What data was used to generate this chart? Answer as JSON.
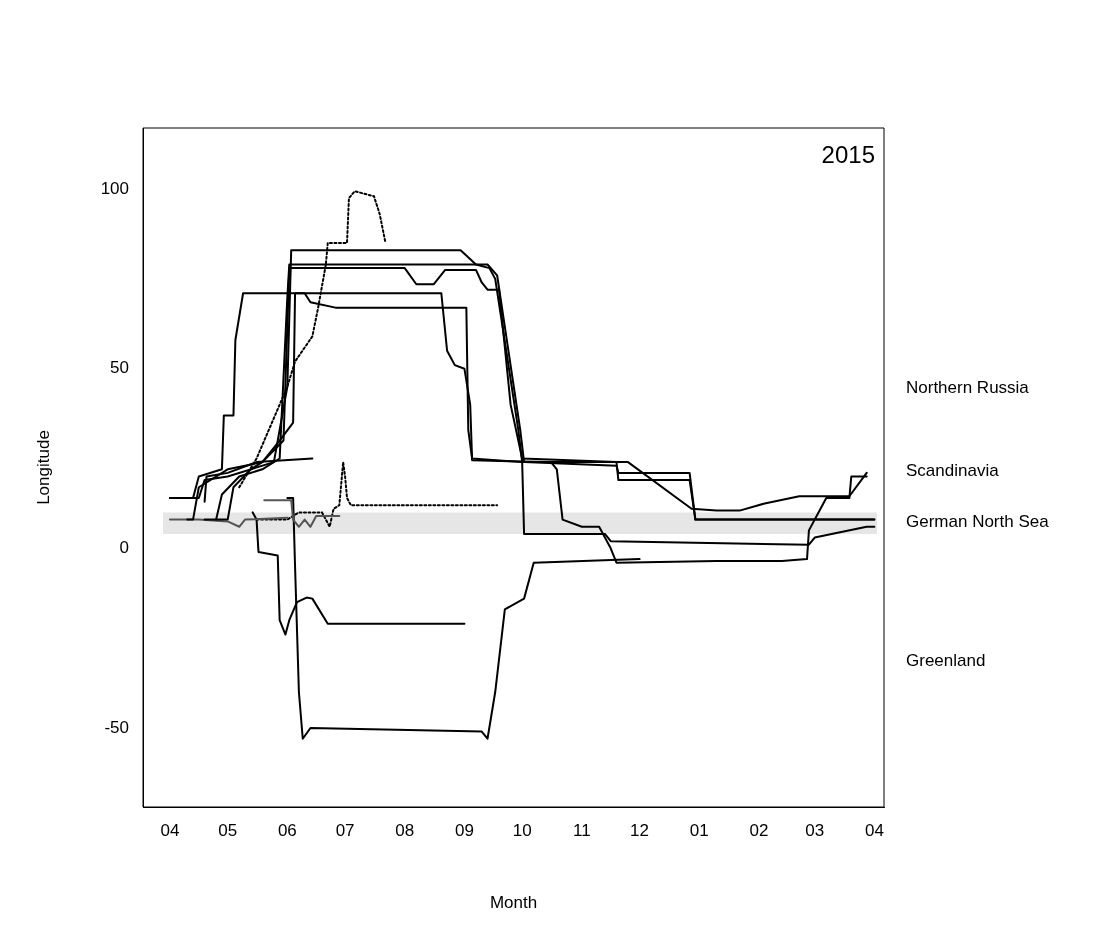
{
  "chart_data": {
    "type": "line",
    "xlabel": "Month",
    "ylabel": "Longitude",
    "xlim": [
      "2015-03-18",
      "2016-04-06"
    ],
    "ylim": [
      -72,
      117
    ],
    "xticks": [
      {
        "value": "2015-04",
        "label": "04"
      },
      {
        "value": "2015-05",
        "label": "05"
      },
      {
        "value": "2015-06",
        "label": "06"
      },
      {
        "value": "2015-07",
        "label": "07"
      },
      {
        "value": "2015-08",
        "label": "08"
      },
      {
        "value": "2015-09",
        "label": "09"
      },
      {
        "value": "2015-10",
        "label": "10"
      },
      {
        "value": "2015-11",
        "label": "11"
      },
      {
        "value": "2015-12",
        "label": "12"
      },
      {
        "value": "2016-01",
        "label": "01"
      },
      {
        "value": "2016-02",
        "label": "02"
      },
      {
        "value": "2016-03",
        "label": "03"
      },
      {
        "value": "2016-04",
        "label": "04"
      }
    ],
    "yticks": [
      -50,
      0,
      50,
      100
    ],
    "grid": false,
    "legend": false,
    "marker": "none",
    "bands": [
      {
        "axis": "y",
        "from": 4,
        "to": 10,
        "color": "#e6e6e6"
      }
    ],
    "annotations": [
      "2015",
      "Northern Russia",
      "Scandinavia",
      "German North Sea",
      "Greenland"
    ],
    "series": [
      {
        "color": "#000000",
        "x": [
          "2015-04-01",
          "2015-04-16",
          "2015-04-19",
          "2015-05-01",
          "2015-05-25",
          "2015-06-01",
          "2015-06-03",
          "2015-08-30",
          "2015-09-07",
          "2015-09-14",
          "2015-09-17",
          "2015-09-29",
          "2015-10-01",
          "2015-11-25",
          "2015-12-28",
          "2016-01-10",
          "2016-01-22",
          "2016-02-04",
          "2016-02-22",
          "2016-03-19",
          "2016-03-28"
        ],
        "values": [
          14,
          14,
          19,
          20,
          24,
          45,
          83,
          83,
          79,
          78,
          75,
          33,
          24,
          24,
          11,
          10.5,
          10.5,
          12.5,
          14.5,
          14.5,
          21
        ]
      },
      {
        "color": "#000000",
        "x": [
          "2015-04-19",
          "2015-04-25",
          "2015-04-28",
          "2015-05-07",
          "2015-05-19",
          "2015-05-28",
          "2015-06-01",
          "2015-06-02",
          "2015-09-13",
          "2015-09-18",
          "2015-09-30",
          "2015-10-02",
          "2015-11-19",
          "2015-11-20",
          "2015-12-27",
          "2015-12-30",
          "2016-04-01"
        ],
        "values": [
          8,
          8,
          15,
          20,
          22,
          25,
          70,
          79,
          79,
          76,
          33,
          24,
          23,
          21,
          21,
          8,
          8
        ]
      },
      {
        "color": "#000000",
        "x": [
          "2015-04-10",
          "2015-04-13",
          "2015-04-16",
          "2015-05-01",
          "2015-05-19",
          "2015-05-30",
          "2015-06-02",
          "2015-08-01",
          "2015-08-07",
          "2015-08-16",
          "2015-08-22",
          "2015-09-07",
          "2015-09-10",
          "2015-09-13",
          "2015-09-19",
          "2015-09-25",
          "2015-10-01",
          "2015-11-19",
          "2015-11-20",
          "2015-12-27",
          "2015-12-30",
          "2016-04-01"
        ],
        "values": [
          8,
          8,
          17,
          22,
          24,
          30,
          78,
          78,
          73.5,
          73.5,
          77.5,
          77.5,
          74,
          72,
          72,
          40,
          25,
          24,
          19,
          19,
          8,
          8
        ]
      },
      {
        "color": "#000000",
        "x": [
          "2015-04-01",
          "2015-04-13",
          "2015-04-16",
          "2015-04-28",
          "2015-04-29",
          "2015-05-04",
          "2015-05-05",
          "2015-05-09",
          "2015-08-20",
          "2015-08-23",
          "2015-08-27",
          "2015-09-01",
          "2015-09-04",
          "2015-09-05",
          "2015-10-16",
          "2015-10-19",
          "2015-10-22",
          "2015-11-01",
          "2015-11-10",
          "2015-11-16",
          "2015-11-19",
          "2016-01-10",
          "2016-02-13",
          "2016-02-26",
          "2016-02-27",
          "2016-03-07",
          "2016-03-19",
          "2016-03-20",
          "2016-03-28"
        ],
        "values": [
          14,
          14,
          20,
          22,
          37,
          37,
          58,
          71,
          71,
          55,
          51,
          50,
          40,
          24.5,
          24,
          22,
          8,
          6,
          6,
          0,
          -4,
          -3.5,
          -3.5,
          -3,
          5,
          14,
          14,
          20,
          20
        ]
      },
      {
        "color": "#000000",
        "x": [
          "2015-04-25",
          "2015-05-01",
          "2015-05-04",
          "2015-05-13",
          "2015-05-19",
          "2015-05-28",
          "2015-06-04",
          "2015-06-05",
          "2015-06-10",
          "2015-06-13",
          "2015-06-26",
          "2015-09-02",
          "2015-09-03",
          "2015-09-05",
          "2015-10-01",
          "2015-10-02",
          "2015-11-13",
          "2015-11-16",
          "2016-02-27",
          "2016-03-01",
          "2016-03-28",
          "2016-04-01"
        ],
        "values": [
          8,
          8,
          17,
          22,
          24,
          30,
          35,
          71,
          71,
          68.5,
          67,
          67,
          33,
          25,
          24,
          4,
          4,
          2,
          1,
          3,
          6,
          6
        ]
      },
      {
        "color": "#000000",
        "x": [
          "2015-04-19",
          "2015-04-20",
          "2015-05-01",
          "2015-05-16",
          "2015-06-14"
        ],
        "values": [
          13,
          20,
          21,
          24,
          25
        ]
      },
      {
        "color": "#555555",
        "x": [
          "2015-04-01",
          "2015-04-16",
          "2015-05-01",
          "2015-05-07",
          "2015-05-10",
          "2015-06-01"
        ],
        "values": [
          8,
          8,
          7.5,
          6,
          8,
          8.5
        ]
      },
      {
        "color": "#555555",
        "x": [
          "2015-05-20",
          "2015-06-03",
          "2015-06-04",
          "2015-06-07",
          "2015-06-10",
          "2015-06-13",
          "2015-06-16",
          "2015-06-28"
        ],
        "values": [
          13.4,
          13.4,
          8,
          6,
          8,
          6,
          9,
          9
        ]
      },
      {
        "color": "#000000",
        "x": [
          "2015-05-14",
          "2015-05-16",
          "2015-05-17",
          "2015-05-27",
          "2015-05-28",
          "2015-05-31",
          "2015-06-02",
          "2015-06-06",
          "2015-06-11",
          "2015-06-14",
          "2015-06-22",
          "2015-09-01"
        ],
        "values": [
          10,
          8,
          -1,
          -2,
          -20,
          -24,
          -20,
          -15,
          -13.7,
          -14,
          -21,
          -21
        ]
      },
      {
        "color": "#000000",
        "x": [
          "2015-06-01",
          "2015-06-04",
          "2015-06-05",
          "2015-06-07",
          "2015-06-09",
          "2015-06-13",
          "2015-09-10",
          "2015-09-13",
          "2015-09-17",
          "2015-09-22",
          "2015-10-02",
          "2015-10-07",
          "2015-12-01"
        ],
        "values": [
          14,
          14,
          -5,
          -40,
          -53,
          -50,
          -51,
          -53,
          -40,
          -17,
          -14,
          -4,
          -3
        ]
      },
      {
        "color": "#000000",
        "line_style": "dotted",
        "x": [
          "2015-05-07",
          "2015-05-16",
          "2015-06-01",
          "2015-06-05",
          "2015-06-14",
          "2015-06-17",
          "2015-06-21",
          "2015-06-22",
          "2015-07-02",
          "2015-07-03",
          "2015-07-06",
          "2015-07-16",
          "2015-07-19",
          "2015-07-22"
        ],
        "values": [
          17,
          25,
          45,
          52,
          59,
          67,
          79,
          85,
          85,
          97.5,
          99.4,
          98,
          93,
          85
        ]
      },
      {
        "color": "#000000",
        "line_style": "dotted",
        "x": [
          "2015-05-16",
          "2015-06-01",
          "2015-06-07",
          "2015-06-19",
          "2015-06-23",
          "2015-06-25",
          "2015-06-28",
          "2015-06-30",
          "2015-07-01",
          "2015-07-02",
          "2015-07-04",
          "2015-08-01",
          "2015-09-18"
        ],
        "values": [
          8,
          8,
          10,
          10,
          6,
          11,
          12,
          24,
          20,
          14,
          12,
          12,
          12
        ]
      }
    ]
  }
}
